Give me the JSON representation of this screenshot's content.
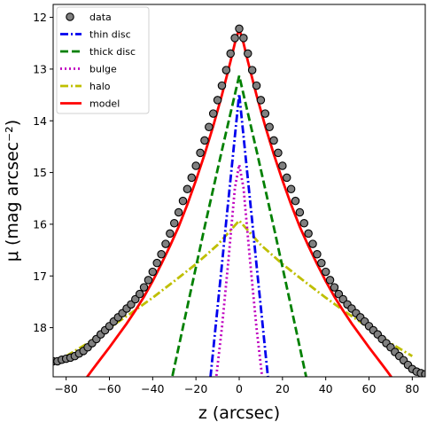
{
  "chart_data": {
    "type": "line",
    "xlabel": "z (arcsec)",
    "ylabel": "μ (mag arcsec⁻²)",
    "xlim": [
      -86,
      86
    ],
    "ylim": [
      18.95,
      11.75
    ],
    "y_inverted": true,
    "xticks": [
      -80,
      -60,
      -40,
      -20,
      0,
      20,
      40,
      60,
      80
    ],
    "xtick_labels": [
      "−80",
      "−60",
      "−40",
      "−20",
      "0",
      "20",
      "40",
      "60",
      "80"
    ],
    "yticks": [
      12,
      13,
      14,
      15,
      16,
      17,
      18
    ],
    "ytick_labels": [
      "12",
      "13",
      "14",
      "15",
      "16",
      "17",
      "18"
    ],
    "grid": false,
    "legend_position": "top-left",
    "series": [
      {
        "name": "data",
        "style": "markers",
        "color": "#808080",
        "x": [
          -86,
          -84,
          -82,
          -80,
          -78,
          -76,
          -74,
          -72,
          -70,
          -68,
          -66,
          -64,
          -62,
          -60,
          -58,
          -56,
          -54,
          -52,
          -50,
          -48,
          -46,
          -44,
          -42,
          -40,
          -38,
          -36,
          -34,
          -32,
          -30,
          -28,
          -26,
          -24,
          -22,
          -20,
          -18,
          -16,
          -14,
          -12,
          -10,
          -8,
          -6,
          -4,
          -2,
          0,
          2,
          4,
          6,
          8,
          10,
          12,
          14,
          16,
          18,
          20,
          22,
          24,
          26,
          28,
          30,
          32,
          34,
          36,
          38,
          40,
          42,
          44,
          46,
          48,
          50,
          52,
          54,
          56,
          58,
          60,
          62,
          64,
          66,
          68,
          70,
          72,
          74,
          76,
          78,
          80,
          82,
          84,
          86
        ],
        "y": [
          18.65,
          18.65,
          18.62,
          18.6,
          18.58,
          18.55,
          18.5,
          18.45,
          18.38,
          18.3,
          18.22,
          18.13,
          18.05,
          17.97,
          17.88,
          17.8,
          17.72,
          17.63,
          17.55,
          17.45,
          17.35,
          17.22,
          17.08,
          16.92,
          16.75,
          16.58,
          16.38,
          16.18,
          15.98,
          15.77,
          15.55,
          15.32,
          15.1,
          14.87,
          14.62,
          14.38,
          14.12,
          13.86,
          13.6,
          13.32,
          13.02,
          12.7,
          12.4,
          12.22,
          12.4,
          12.7,
          13.02,
          13.32,
          13.6,
          13.86,
          14.12,
          14.38,
          14.62,
          14.87,
          15.1,
          15.32,
          15.55,
          15.77,
          15.98,
          16.18,
          16.38,
          16.58,
          16.75,
          16.92,
          17.08,
          17.22,
          17.35,
          17.45,
          17.55,
          17.63,
          17.72,
          17.8,
          17.88,
          17.97,
          18.05,
          18.13,
          18.22,
          18.3,
          18.38,
          18.47,
          18.55,
          18.63,
          18.72,
          18.8,
          18.85,
          18.88,
          18.9
        ]
      },
      {
        "name": "thin disc",
        "style": "dashdot",
        "color": "#0000ee",
        "x": [
          -14,
          -12,
          -10,
          -8,
          -6,
          -4,
          -2,
          0,
          2,
          4,
          6,
          8,
          10,
          12,
          14
        ],
        "y": [
          19.25,
          18.43,
          17.6,
          16.78,
          15.95,
          15.13,
          14.3,
          13.48,
          14.3,
          15.13,
          15.95,
          16.78,
          17.6,
          18.43,
          19.25
        ]
      },
      {
        "name": "thick disc",
        "style": "dashed",
        "color": "#008000",
        "x": [
          -32,
          -24,
          -16,
          -8,
          0,
          8,
          16,
          24,
          32
        ],
        "y": [
          19.15,
          17.6,
          16.06,
          14.57,
          13.13,
          14.57,
          16.06,
          17.6,
          19.15
        ]
      },
      {
        "name": "bulge",
        "style": "dotted",
        "color": "#bf00bf",
        "x": [
          -11,
          -8,
          -5,
          -2,
          0,
          2,
          5,
          8,
          11
        ],
        "y": [
          19.1,
          18.0,
          16.7,
          15.3,
          14.85,
          15.3,
          16.7,
          18.0,
          19.1
        ]
      },
      {
        "name": "halo",
        "style": "dashdot",
        "color": "#bfbf00",
        "x": [
          -80,
          -70,
          -60,
          -50,
          -40,
          -30,
          -20,
          -10,
          0,
          10,
          20,
          30,
          40,
          50,
          60,
          70,
          80
        ],
        "y": [
          18.55,
          18.3,
          18.0,
          17.72,
          17.42,
          17.1,
          16.77,
          16.4,
          15.93,
          16.4,
          16.77,
          17.1,
          17.42,
          17.72,
          18.0,
          18.3,
          18.55
        ]
      },
      {
        "name": "model",
        "style": "solid",
        "color": "#ff0000",
        "x": [
          -72,
          -68,
          -64,
          -60,
          -56,
          -52,
          -48,
          -44,
          -40,
          -36,
          -32,
          -28,
          -24,
          -20,
          -16,
          -12,
          -8,
          -4,
          -2,
          0,
          2,
          4,
          8,
          12,
          16,
          20,
          24,
          28,
          32,
          36,
          40,
          44,
          48,
          52,
          56,
          60,
          64,
          68,
          72
        ],
        "y": [
          19.05,
          18.82,
          18.6,
          18.38,
          18.15,
          17.92,
          17.67,
          17.4,
          17.1,
          16.77,
          16.42,
          16.05,
          15.62,
          15.15,
          14.65,
          14.1,
          13.5,
          12.85,
          12.5,
          12.22,
          12.5,
          12.85,
          13.5,
          14.1,
          14.65,
          15.15,
          15.62,
          16.05,
          16.42,
          16.77,
          17.1,
          17.4,
          17.67,
          17.92,
          18.15,
          18.38,
          18.6,
          18.82,
          19.05
        ]
      }
    ]
  }
}
